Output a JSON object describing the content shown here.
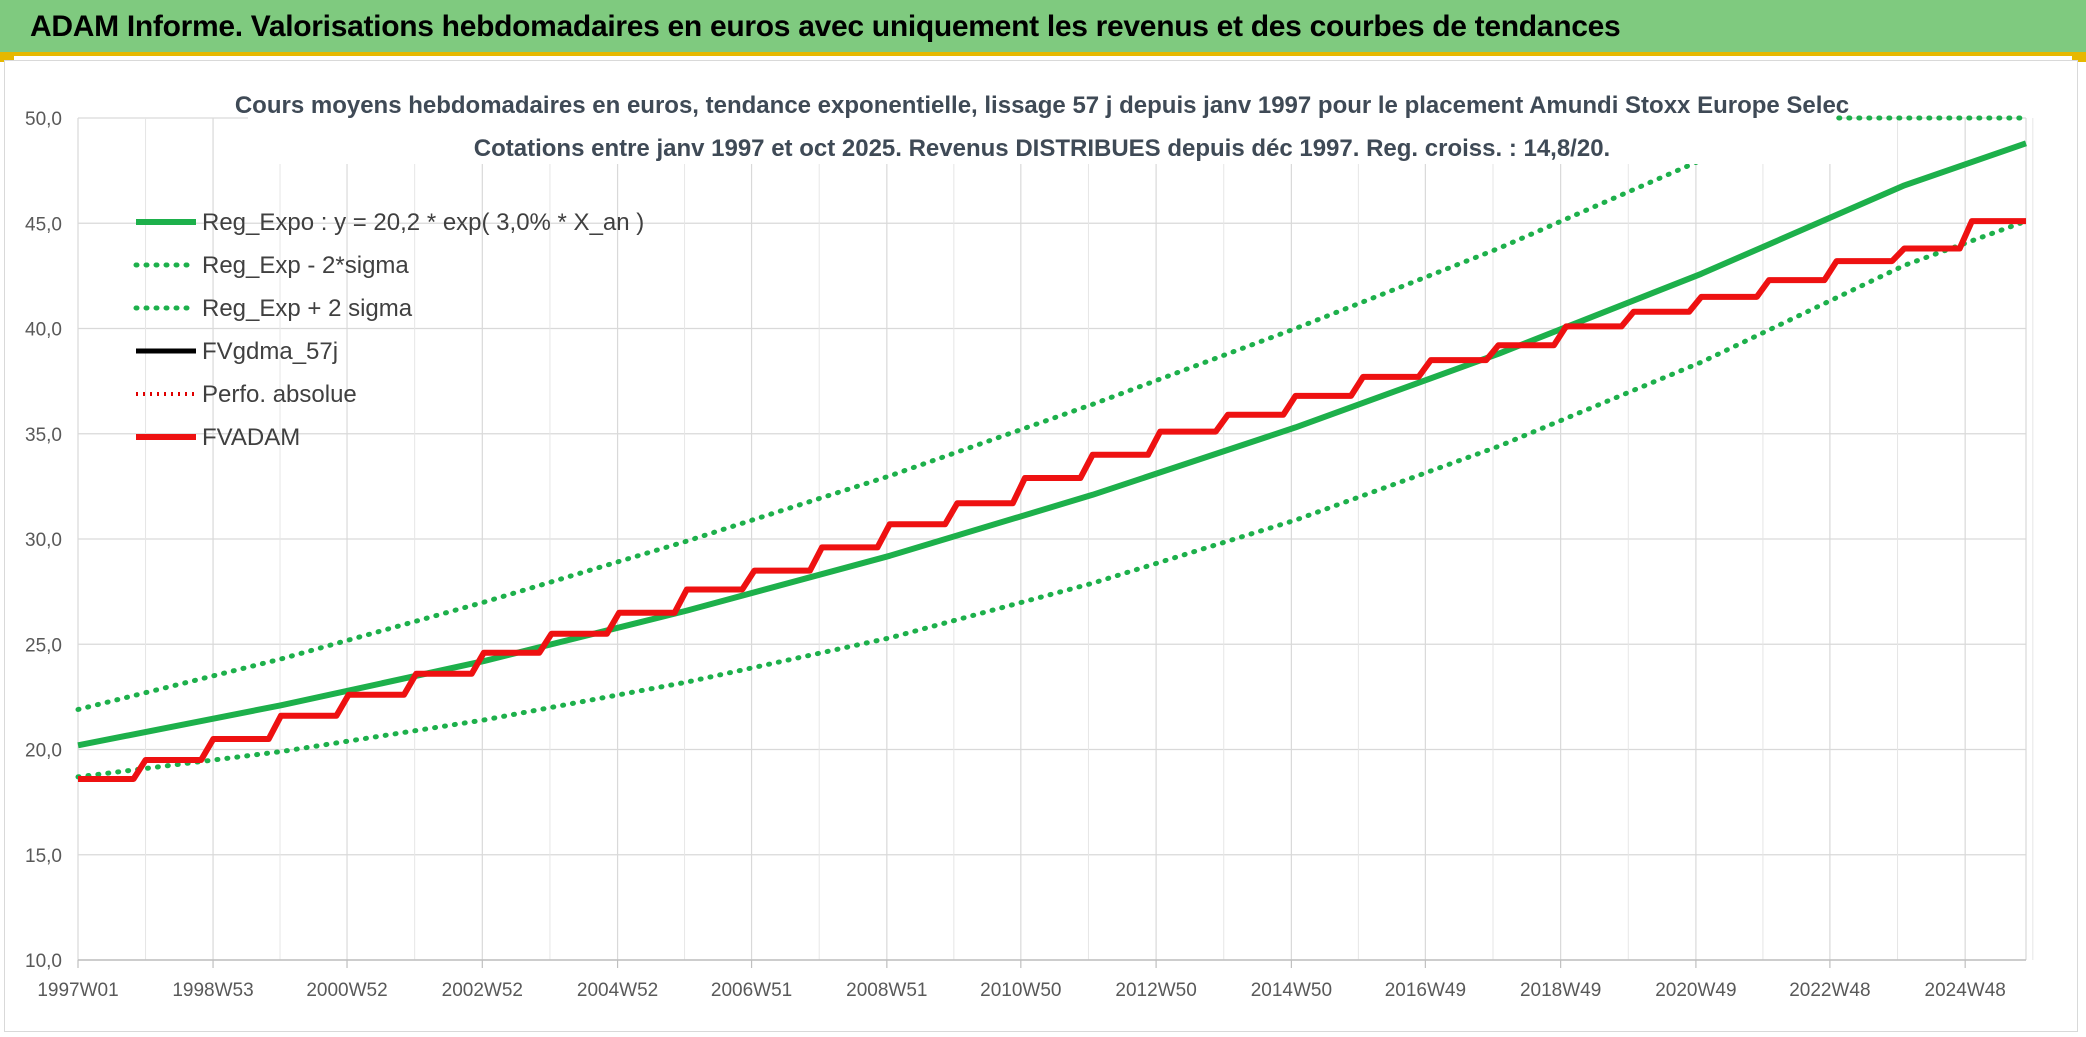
{
  "banner": {
    "title": "ADAM Informe. Valorisations hebdomadaires en euros avec uniquement les revenus et des courbes de tendances"
  },
  "colors": {
    "banner_bg": "#7fca7f",
    "accent": "#e6b800",
    "reg_expo": "#1db04b",
    "reg_band": "#1db04b",
    "fvgdma": "#000000",
    "perfo": "#e00000",
    "fvadam": "#ee1111"
  },
  "chart_data": {
    "type": "line",
    "title_line1": "Cours moyens hebdomadaires en euros, tendance exponentielle, lissage 57 j depuis janv 1997 pour le placement Amundi Stoxx Europe Selec",
    "title_line2": "Cotations entre janv 1997 et oct 2025. Revenus DISTRIBUES depuis déc 1997. Reg. croiss. : 14,8/20.",
    "ylim": [
      10,
      50
    ],
    "y_ticks": [
      "10,0",
      "15,0",
      "20,0",
      "25,0",
      "30,0",
      "35,0",
      "40,0",
      "45,0",
      "50,0"
    ],
    "x_range": [
      "1997W01",
      "2025W43"
    ],
    "x_ticks": [
      "1997W01",
      "1998W53",
      "2000W52",
      "2002W52",
      "2004W52",
      "2006W51",
      "2008W51",
      "2010W50",
      "2012W50",
      "2014W50",
      "2016W49",
      "2018W49",
      "2020W49",
      "2022W48",
      "2024W48"
    ],
    "grid": true,
    "legend_position": "top-left",
    "series": [
      {
        "name": "Reg_Expo : y = 20,2 * exp( 3,0% *  X_an )",
        "style": "solid",
        "color": "#1db04b",
        "x": [
          1997.0,
          2000.0,
          2003.0,
          2006.0,
          2009.0,
          2012.0,
          2015.0,
          2018.0,
          2021.0,
          2024.0,
          2025.8
        ],
        "y": [
          20.2,
          22.1,
          24.2,
          26.6,
          29.2,
          32.1,
          35.3,
          38.8,
          42.6,
          46.8,
          48.8
        ]
      },
      {
        "name": "Reg_Exp - 2*sigma",
        "style": "dotted",
        "color": "#1db04b",
        "x": [
          1997.0,
          2000.0,
          2003.0,
          2006.0,
          2009.0,
          2012.0,
          2015.0,
          2018.0,
          2021.0,
          2024.0,
          2025.8
        ],
        "y": [
          18.7,
          19.9,
          21.4,
          23.2,
          25.3,
          27.9,
          30.9,
          34.4,
          38.4,
          43.0,
          45.1
        ]
      },
      {
        "name": "Reg_Exp + 2 sigma",
        "style": "dotted",
        "color": "#1db04b",
        "x": [
          1997.0,
          2000.0,
          2003.0,
          2006.0,
          2009.0,
          2012.0,
          2015.0,
          2018.0,
          2021.0,
          2023.0,
          2025.8
        ],
        "y": [
          21.9,
          24.3,
          27.0,
          29.9,
          33.0,
          36.4,
          40.0,
          43.8,
          48.0,
          50.0,
          50.0
        ]
      },
      {
        "name": "FVgdma_57j",
        "style": "solid",
        "color": "#000000",
        "x": [
          1997.0,
          1998.0,
          1999.0,
          2000.0,
          2001.0,
          2002.0,
          2003.0,
          2004.0,
          2005.0,
          2006.0,
          2007.0,
          2008.0,
          2009.0,
          2010.0,
          2011.0,
          2012.0,
          2013.0,
          2014.0,
          2015.0,
          2016.0,
          2017.0,
          2018.0,
          2019.0,
          2020.0,
          2021.0,
          2022.0,
          2023.0,
          2024.0,
          2025.0,
          2025.8
        ],
        "y": [
          18.6,
          19.5,
          20.5,
          21.6,
          22.6,
          23.6,
          24.6,
          25.5,
          26.5,
          27.6,
          28.5,
          29.6,
          30.7,
          31.7,
          32.9,
          34.0,
          35.1,
          35.9,
          36.8,
          37.7,
          38.5,
          39.2,
          40.1,
          40.8,
          41.5,
          42.3,
          43.2,
          43.8,
          45.1,
          45.1
        ]
      },
      {
        "name": "Perfo. absolue",
        "style": "dotted",
        "color": "#e00000",
        "x": [
          1997.0,
          1998.0,
          1999.0,
          2000.0,
          2001.0,
          2002.0,
          2003.0,
          2004.0,
          2005.0,
          2006.0,
          2007.0,
          2008.0,
          2009.0,
          2010.0,
          2011.0,
          2012.0,
          2013.0,
          2014.0,
          2015.0,
          2016.0,
          2017.0,
          2018.0,
          2019.0,
          2020.0,
          2021.0,
          2022.0,
          2023.0,
          2024.0,
          2025.0,
          2025.8
        ],
        "y": [
          18.6,
          19.5,
          20.5,
          21.6,
          22.6,
          23.6,
          24.6,
          25.5,
          26.5,
          27.6,
          28.5,
          29.6,
          30.7,
          31.7,
          32.9,
          34.0,
          35.1,
          35.9,
          36.8,
          37.7,
          38.5,
          39.2,
          40.1,
          40.8,
          41.5,
          42.3,
          43.2,
          43.8,
          45.1,
          45.1
        ]
      },
      {
        "name": "FVADAM",
        "style": "solid",
        "color": "#ee1111",
        "x": [
          1997.0,
          1998.0,
          1999.0,
          2000.0,
          2001.0,
          2002.0,
          2003.0,
          2004.0,
          2005.0,
          2006.0,
          2007.0,
          2008.0,
          2009.0,
          2010.0,
          2011.0,
          2012.0,
          2013.0,
          2014.0,
          2015.0,
          2016.0,
          2017.0,
          2018.0,
          2019.0,
          2020.0,
          2021.0,
          2022.0,
          2023.0,
          2024.0,
          2025.0,
          2025.8
        ],
        "y": [
          18.6,
          19.5,
          20.5,
          21.6,
          22.6,
          23.6,
          24.6,
          25.5,
          26.5,
          27.6,
          28.5,
          29.6,
          30.7,
          31.7,
          32.9,
          34.0,
          35.1,
          35.9,
          36.8,
          37.7,
          38.5,
          39.2,
          40.1,
          40.8,
          41.5,
          42.3,
          43.2,
          43.8,
          45.1,
          45.1
        ]
      }
    ]
  }
}
